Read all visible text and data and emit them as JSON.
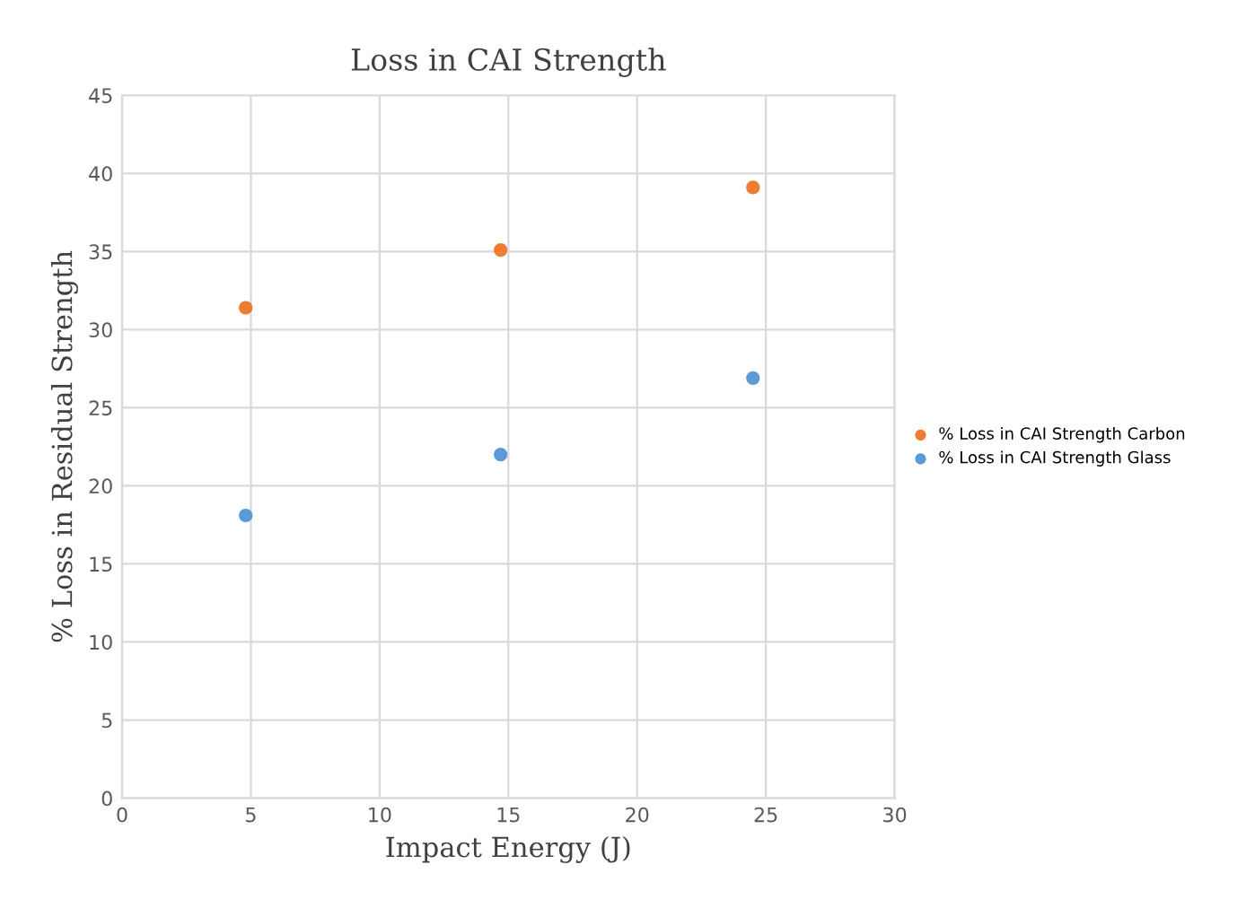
{
  "chart_data": {
    "type": "scatter",
    "title": "Loss in CAI Strength",
    "xlabel": "Impact Energy (J)",
    "ylabel": "% Loss in Residual Strength",
    "xlim": [
      0,
      30
    ],
    "xticks": [
      0,
      5,
      10,
      15,
      20,
      25,
      30
    ],
    "ylim": [
      0,
      45
    ],
    "yticks": [
      0,
      5,
      10,
      15,
      20,
      25,
      30,
      35,
      40,
      45
    ],
    "grid": true,
    "legend": "right",
    "marker": "circle",
    "series": [
      {
        "name": "% Loss in CAI Strength Carbon",
        "color": "#ed7d31",
        "x": [
          4.8,
          14.7,
          24.5
        ],
        "values": [
          31.4,
          35.1,
          39.1
        ]
      },
      {
        "name": "% Loss in CAI Strength Glass",
        "color": "#5b9bd5",
        "x": [
          4.8,
          14.7,
          24.5
        ],
        "values": [
          18.1,
          22.0,
          26.9
        ]
      }
    ]
  }
}
